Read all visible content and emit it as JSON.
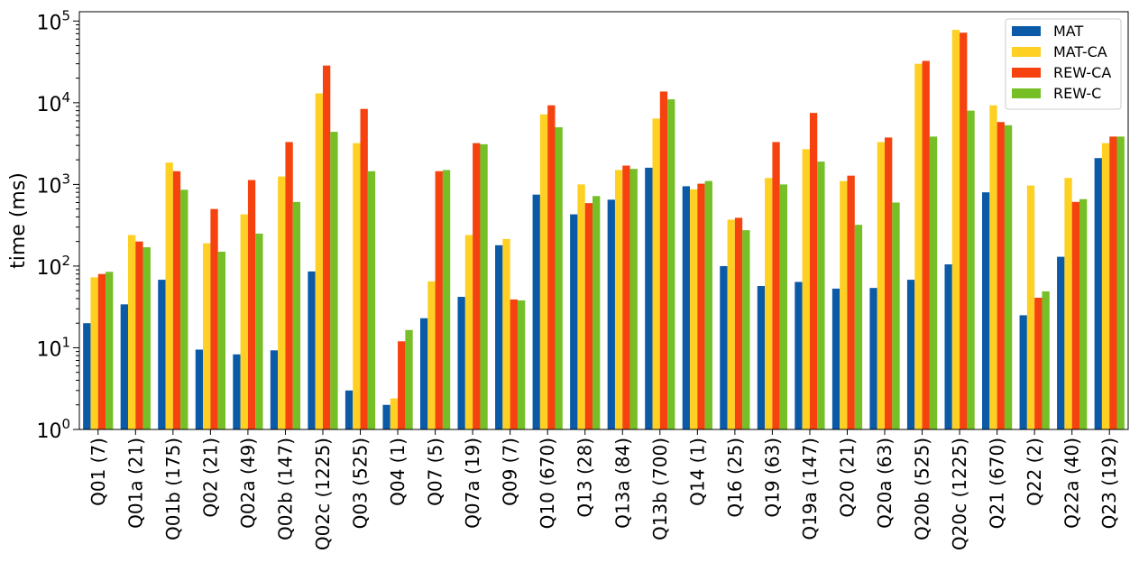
{
  "chart_data": {
    "type": "bar",
    "ylabel": "time (ms)",
    "xlabel": "",
    "yscale": "log",
    "ylim": [
      1,
      130000
    ],
    "yticks": [
      {
        "value": 1,
        "base": "10",
        "exp": "0"
      },
      {
        "value": 10,
        "base": "10",
        "exp": "1"
      },
      {
        "value": 100,
        "base": "10",
        "exp": "2"
      },
      {
        "value": 1000,
        "base": "10",
        "exp": "3"
      },
      {
        "value": 10000,
        "base": "10",
        "exp": "4"
      },
      {
        "value": 100000,
        "base": "10",
        "exp": "5"
      }
    ],
    "legend_position": "top-right",
    "categories": [
      "Q01 (7)",
      "Q01a (21)",
      "Q01b (175)",
      "Q02 (21)",
      "Q02a (49)",
      "Q02b (147)",
      "Q02c (1225)",
      "Q03 (525)",
      "Q04 (1)",
      "Q07 (5)",
      "Q07a (19)",
      "Q09 (7)",
      "Q10 (670)",
      "Q13 (28)",
      "Q13a (84)",
      "Q13b (700)",
      "Q14 (1)",
      "Q16 (25)",
      "Q19 (63)",
      "Q19a (147)",
      "Q20 (21)",
      "Q20a (63)",
      "Q20b (525)",
      "Q20c (1225)",
      "Q21 (670)",
      "Q22 (2)",
      "Q22a (40)",
      "Q23 (192)"
    ],
    "series": [
      {
        "name": "MAT",
        "color": "#0a5aa8",
        "values": [
          20,
          34,
          68,
          9.5,
          8.3,
          9.3,
          86,
          3,
          2,
          23,
          42,
          180,
          750,
          430,
          650,
          1600,
          950,
          100,
          57,
          64,
          53,
          54,
          68,
          105,
          800,
          25,
          130,
          2100
        ]
      },
      {
        "name": "MAT-CA",
        "color": "#fdd023",
        "values": [
          73,
          240,
          1850,
          190,
          430,
          1250,
          13000,
          3200,
          2.4,
          65,
          240,
          215,
          7200,
          1000,
          1500,
          6400,
          870,
          370,
          1200,
          2700,
          1100,
          3300,
          30000,
          78000,
          9300,
          970,
          1200,
          3200
        ]
      },
      {
        "name": "REW-CA",
        "color": "#f5420f",
        "values": [
          80,
          200,
          1450,
          500,
          1130,
          3300,
          28500,
          8400,
          12,
          1450,
          3200,
          39,
          9300,
          590,
          1700,
          13700,
          1020,
          390,
          3300,
          7500,
          1280,
          3750,
          32500,
          72000,
          5800,
          41,
          610,
          3850
        ]
      },
      {
        "name": "REW-C",
        "color": "#76bf27",
        "values": [
          85,
          170,
          860,
          150,
          250,
          610,
          4400,
          1450,
          16.5,
          1500,
          3100,
          38,
          5000,
          720,
          1550,
          11000,
          1100,
          275,
          1000,
          1900,
          320,
          600,
          3850,
          8000,
          5300,
          49,
          660,
          3850
        ]
      }
    ]
  }
}
